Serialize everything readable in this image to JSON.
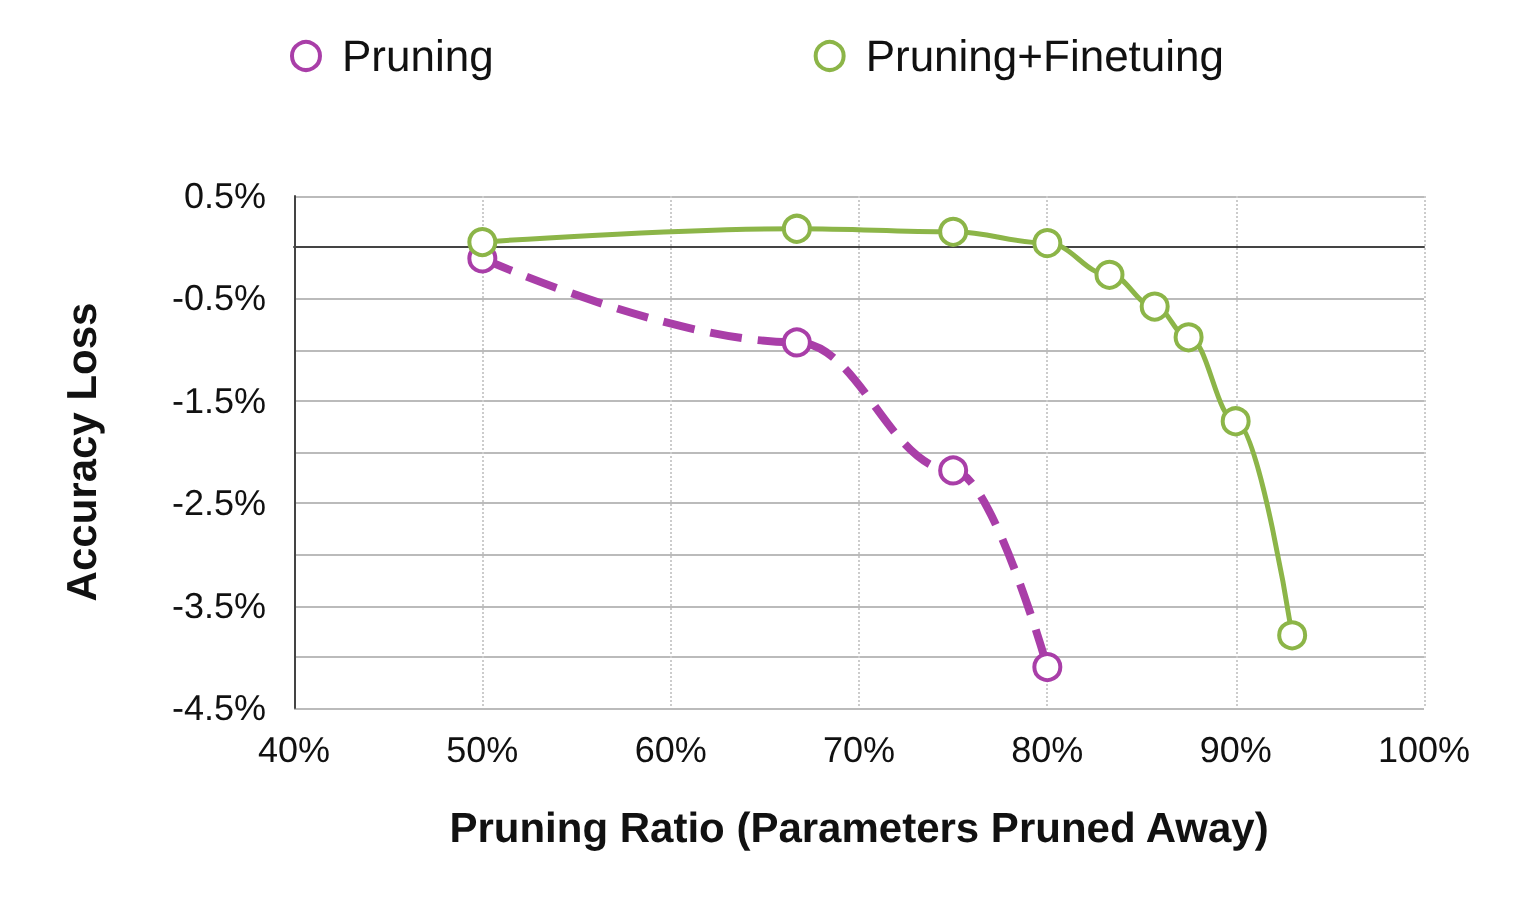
{
  "chart_data": {
    "type": "line",
    "xlabel": "Pruning Ratio (Parameters Pruned Away)",
    "ylabel": "Accuracy Loss",
    "xlim": [
      40,
      100
    ],
    "xticks": [
      {
        "value": 40,
        "label": "40%"
      },
      {
        "value": 50,
        "label": "50%"
      },
      {
        "value": 60,
        "label": "60%"
      },
      {
        "value": 70,
        "label": "70%"
      },
      {
        "value": 80,
        "label": "80%"
      },
      {
        "value": 90,
        "label": "90%"
      },
      {
        "value": 100,
        "label": "100%"
      }
    ],
    "ylim": [
      -4.5,
      0.5
    ],
    "yticks": [
      {
        "value": 0.5,
        "label": "0.5%"
      },
      {
        "value": 0,
        "label": null
      },
      {
        "value": -0.5,
        "label": "-0.5%"
      },
      {
        "value": -1,
        "label": null
      },
      {
        "value": -1.5,
        "label": "-1.5%"
      },
      {
        "value": -2,
        "label": null
      },
      {
        "value": -2.5,
        "label": "-2.5%"
      },
      {
        "value": -3,
        "label": null
      },
      {
        "value": -3.5,
        "label": "-3.5%"
      },
      {
        "value": -4,
        "label": null
      },
      {
        "value": -4.5,
        "label": "-4.5%"
      }
    ],
    "grid": true,
    "legend": "top",
    "marker": "circle",
    "series": [
      {
        "name": "Pruning",
        "color": "#a93ea8",
        "line_style": "dashed",
        "x": [
          50,
          66.7,
          75,
          80
        ],
        "values": [
          -0.11,
          -0.93,
          -2.18,
          -4.1
        ]
      },
      {
        "name": "Pruning+Finetuing",
        "color": "#8cb548",
        "line_style": "solid",
        "x": [
          50,
          66.7,
          75,
          80,
          83.3,
          85.7,
          87.5,
          90,
          93
        ],
        "values": [
          0.05,
          0.18,
          0.15,
          0.04,
          -0.27,
          -0.58,
          -0.88,
          -1.7,
          -3.79
        ]
      }
    ]
  }
}
